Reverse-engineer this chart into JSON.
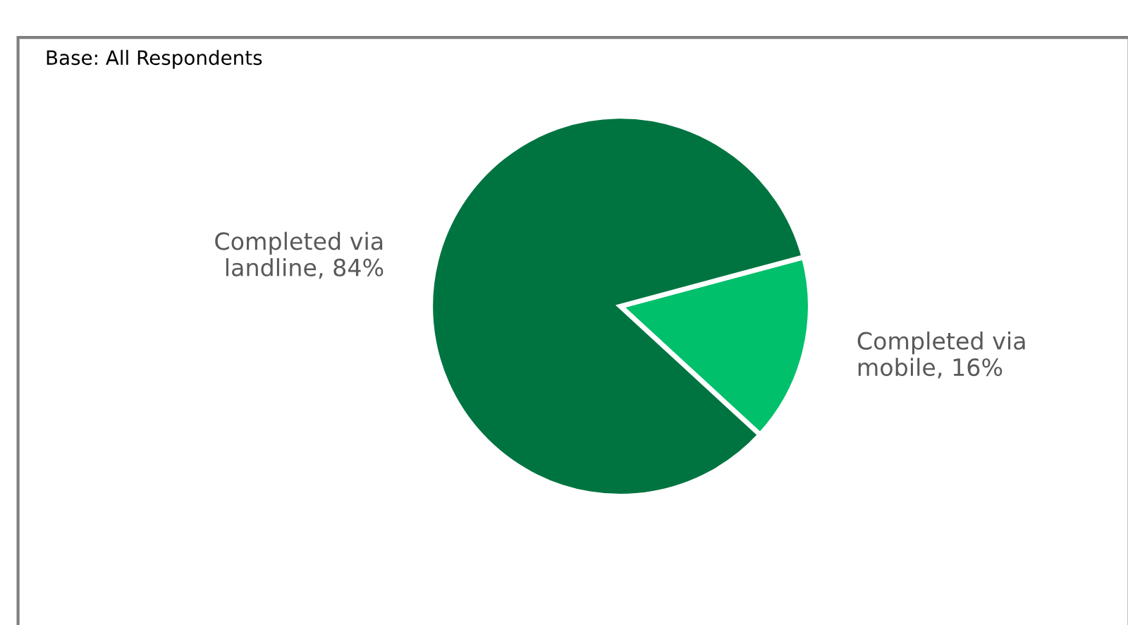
{
  "chart_data": {
    "type": "pie",
    "annotations": [
      "Base: All Respondents"
    ],
    "categories": [
      "Completed via mobile, 16%",
      "Completed via landline, 84%"
    ],
    "values": [
      16,
      84
    ],
    "colors": [
      "#00c06b",
      "#007440"
    ]
  }
}
